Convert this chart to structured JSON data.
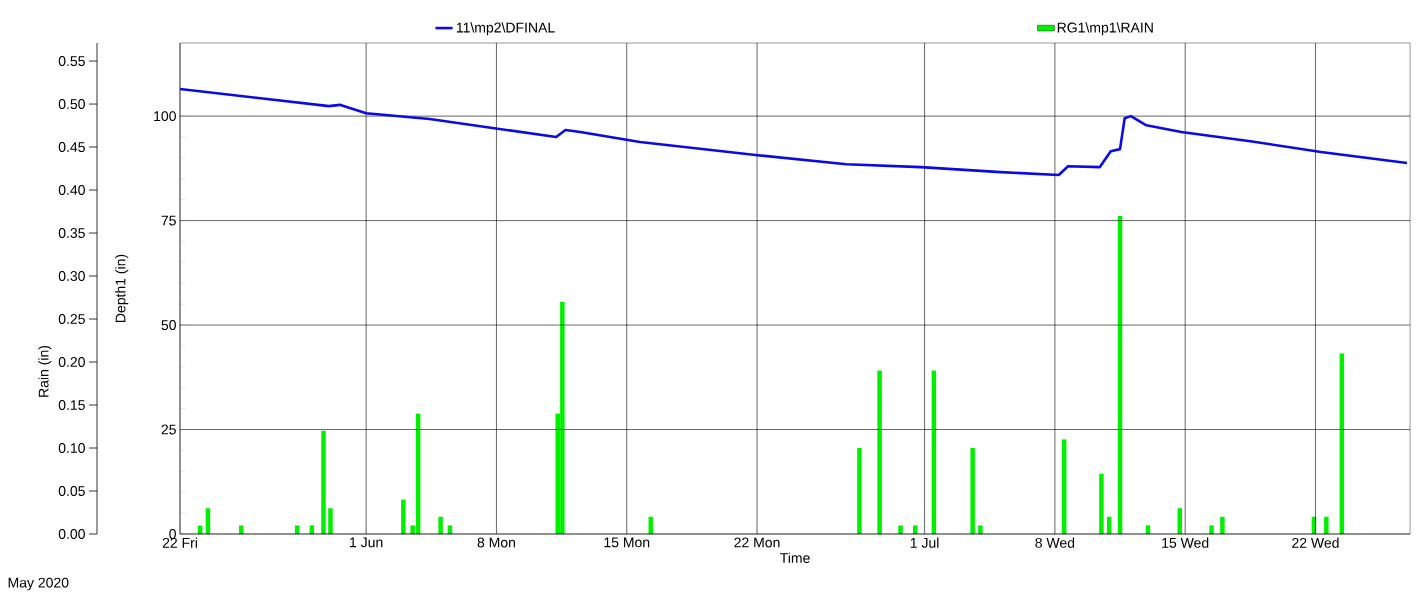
{
  "chart_data": {
    "type": "line",
    "xlabel": "Time",
    "ylabel": "Depth1 (in)",
    "y2label": "Rain (in)",
    "annotations": [
      "May 2020"
    ],
    "xlim": [
      "2020-05-22T00:00",
      "2020-07-27T02:00"
    ],
    "xticks": [
      {
        "value": "2020-05-22",
        "label": "22 Fri"
      },
      {
        "value": "2020-06-01",
        "label": "1 Jun"
      },
      {
        "value": "2020-06-08",
        "label": "8 Mon"
      },
      {
        "value": "2020-06-15",
        "label": "15 Mon"
      },
      {
        "value": "2020-06-22",
        "label": "22 Mon"
      },
      {
        "value": "2020-07-01",
        "label": "1 Jul"
      },
      {
        "value": "2020-07-08",
        "label": "8 Wed"
      },
      {
        "value": "2020-07-15",
        "label": "15 Wed"
      },
      {
        "value": "2020-07-22",
        "label": "22 Wed"
      }
    ],
    "ylim": [
      0,
      117.5
    ],
    "yticks": [
      0,
      25,
      50,
      75,
      100
    ],
    "y2lim": [
      0,
      0.571
    ],
    "y2ticks": [
      {
        "value": 0,
        "label": "0.00"
      },
      {
        "value": 0.05,
        "label": "0.05"
      },
      {
        "value": 0.1,
        "label": "0.10"
      },
      {
        "value": 0.15,
        "label": "0.15"
      },
      {
        "value": 0.2,
        "label": "0.20"
      },
      {
        "value": 0.25,
        "label": "0.25"
      },
      {
        "value": 0.3,
        "label": "0.30"
      },
      {
        "value": 0.35,
        "label": "0.35"
      },
      {
        "value": 0.4,
        "label": "0.40"
      },
      {
        "value": 0.45,
        "label": "0.45"
      },
      {
        "value": 0.5,
        "label": "0.50"
      },
      {
        "value": 0.55,
        "label": "0.55"
      }
    ],
    "grid": true,
    "legend": "top",
    "series": [
      {
        "name": "11\\mp2\\DFINAL",
        "color": "#0a0ae6",
        "x": [
          "2020-05-22T00:00",
          "2020-05-30T00:00",
          "2020-05-30T14:00",
          "2020-06-01T00:00",
          "2020-06-04T10:00",
          "2020-06-11T05:00",
          "2020-06-11T17:00",
          "2020-06-12T12:00",
          "2020-06-15T17:00",
          "2020-06-21T22:00",
          "2020-06-26T19:00",
          "2020-06-30T19:00",
          "2020-07-05T02:00",
          "2020-07-08T05:00",
          "2020-07-08T17:00",
          "2020-07-10T10:00",
          "2020-07-11T00:00",
          "2020-07-11T12:00",
          "2020-07-11T18:00",
          "2020-07-12T02:00",
          "2020-07-12T22:00",
          "2020-07-14T19:00",
          "2020-07-18T12:00",
          "2020-07-22T07:00",
          "2020-07-26T22:00"
        ],
        "values": [
          106.5,
          102.4,
          102.7,
          100.7,
          99.3,
          95.0,
          96.7,
          96.2,
          93.8,
          90.7,
          88.5,
          87.8,
          86.6,
          85.9,
          88.0,
          87.8,
          91.6,
          92.1,
          99.5,
          100.0,
          97.8,
          96.2,
          94.0,
          91.4,
          88.8
        ]
      },
      {
        "name": "RG1\\mp1\\RAIN",
        "type": "bar",
        "axis": "y2",
        "color": "#00f000",
        "x": [
          "2020-05-23T02:00",
          "2020-05-23T12:00",
          "2020-05-25T07:00",
          "2020-05-28T07:00",
          "2020-05-29T02:00",
          "2020-05-29T17:00",
          "2020-05-30T02:00",
          "2020-06-03T00:00",
          "2020-06-03T12:00",
          "2020-06-03T19:00",
          "2020-06-05T00:00",
          "2020-06-05T12:00",
          "2020-06-11T07:00",
          "2020-06-11T13:00",
          "2020-06-16T07:00",
          "2020-06-27T12:00",
          "2020-06-28T14:00",
          "2020-06-29T17:00",
          "2020-06-30T12:00",
          "2020-07-01T12:00",
          "2020-07-03T14:00",
          "2020-07-04T00:00",
          "2020-07-08T12:00",
          "2020-07-10T12:00",
          "2020-07-10T22:00",
          "2020-07-11T12:00",
          "2020-07-13T00:00",
          "2020-07-14T17:00",
          "2020-07-16T10:00",
          "2020-07-17T00:00",
          "2020-07-21T22:00",
          "2020-07-22T14:00",
          "2020-07-23T10:00"
        ],
        "values": [
          0.01,
          0.03,
          0.01,
          0.01,
          0.01,
          0.12,
          0.03,
          0.04,
          0.01,
          0.14,
          0.02,
          0.01,
          0.14,
          0.27,
          0.02,
          0.1,
          0.19,
          0.01,
          0.01,
          0.19,
          0.1,
          0.01,
          0.11,
          0.07,
          0.02,
          0.37,
          0.01,
          0.03,
          0.01,
          0.02,
          0.02,
          0.02,
          0.21
        ]
      }
    ]
  }
}
